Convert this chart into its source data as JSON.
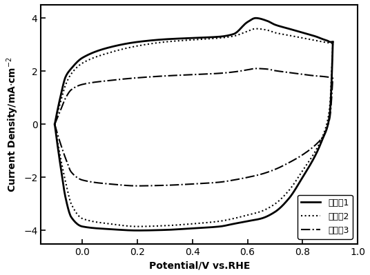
{
  "title": "",
  "xlabel": "Potential/V vs.RHE",
  "ylabel": "Current Density/mA·cm⁻²",
  "xlim": [
    -0.15,
    1.0
  ],
  "ylim": [
    -4.5,
    4.5
  ],
  "xticks": [
    0.0,
    0.2,
    0.4,
    0.6,
    0.8,
    1.0
  ],
  "yticks": [
    -4,
    -2,
    0,
    2,
    4
  ],
  "legend": [
    "实施兣1",
    "实施兣2",
    "实施兣3"
  ],
  "background_color": "white",
  "curve1_upper_pts": [
    [
      -0.1,
      0.0
    ],
    [
      -0.08,
      1.0
    ],
    [
      -0.06,
      1.8
    ],
    [
      -0.04,
      2.1
    ],
    [
      0.0,
      2.5
    ],
    [
      0.1,
      2.9
    ],
    [
      0.2,
      3.1
    ],
    [
      0.3,
      3.2
    ],
    [
      0.4,
      3.25
    ],
    [
      0.5,
      3.3
    ],
    [
      0.55,
      3.4
    ],
    [
      0.6,
      3.85
    ],
    [
      0.63,
      4.0
    ],
    [
      0.67,
      3.9
    ],
    [
      0.7,
      3.75
    ],
    [
      0.75,
      3.6
    ],
    [
      0.8,
      3.45
    ],
    [
      0.85,
      3.3
    ],
    [
      0.875,
      3.2
    ],
    [
      0.89,
      3.15
    ],
    [
      0.9,
      3.1
    ],
    [
      0.91,
      3.1
    ]
  ],
  "curve1_lower_pts": [
    [
      -0.1,
      0.0
    ],
    [
      -0.08,
      -1.5
    ],
    [
      -0.06,
      -2.8
    ],
    [
      -0.04,
      -3.5
    ],
    [
      0.0,
      -3.85
    ],
    [
      0.1,
      -3.95
    ],
    [
      0.2,
      -4.0
    ],
    [
      0.3,
      -3.98
    ],
    [
      0.4,
      -3.92
    ],
    [
      0.5,
      -3.85
    ],
    [
      0.55,
      -3.75
    ],
    [
      0.6,
      -3.65
    ],
    [
      0.65,
      -3.55
    ],
    [
      0.7,
      -3.3
    ],
    [
      0.75,
      -2.8
    ],
    [
      0.8,
      -2.0
    ],
    [
      0.85,
      -1.1
    ],
    [
      0.875,
      -0.5
    ],
    [
      0.89,
      -0.1
    ],
    [
      0.9,
      0.5
    ],
    [
      0.905,
      1.5
    ],
    [
      0.91,
      3.1
    ]
  ],
  "curve2_upper_pts": [
    [
      -0.1,
      0.0
    ],
    [
      -0.08,
      0.8
    ],
    [
      -0.06,
      1.5
    ],
    [
      -0.04,
      1.9
    ],
    [
      0.0,
      2.3
    ],
    [
      0.1,
      2.7
    ],
    [
      0.2,
      2.95
    ],
    [
      0.3,
      3.1
    ],
    [
      0.4,
      3.18
    ],
    [
      0.5,
      3.25
    ],
    [
      0.55,
      3.32
    ],
    [
      0.6,
      3.5
    ],
    [
      0.63,
      3.6
    ],
    [
      0.67,
      3.55
    ],
    [
      0.7,
      3.45
    ],
    [
      0.75,
      3.35
    ],
    [
      0.8,
      3.25
    ],
    [
      0.85,
      3.15
    ],
    [
      0.875,
      3.1
    ],
    [
      0.89,
      3.08
    ],
    [
      0.9,
      3.05
    ],
    [
      0.91,
      3.05
    ]
  ],
  "curve2_lower_pts": [
    [
      -0.1,
      0.0
    ],
    [
      -0.08,
      -1.2
    ],
    [
      -0.06,
      -2.2
    ],
    [
      -0.04,
      -3.0
    ],
    [
      0.0,
      -3.55
    ],
    [
      0.1,
      -3.75
    ],
    [
      0.2,
      -3.85
    ],
    [
      0.3,
      -3.82
    ],
    [
      0.4,
      -3.75
    ],
    [
      0.5,
      -3.65
    ],
    [
      0.55,
      -3.55
    ],
    [
      0.6,
      -3.42
    ],
    [
      0.65,
      -3.28
    ],
    [
      0.7,
      -3.0
    ],
    [
      0.75,
      -2.5
    ],
    [
      0.8,
      -1.75
    ],
    [
      0.85,
      -0.95
    ],
    [
      0.875,
      -0.4
    ],
    [
      0.89,
      0.1
    ],
    [
      0.9,
      0.8
    ],
    [
      0.905,
      1.8
    ],
    [
      0.91,
      3.05
    ]
  ],
  "curve3_upper_pts": [
    [
      -0.1,
      0.0
    ],
    [
      -0.08,
      0.5
    ],
    [
      -0.06,
      1.0
    ],
    [
      -0.04,
      1.3
    ],
    [
      0.0,
      1.5
    ],
    [
      0.1,
      1.65
    ],
    [
      0.2,
      1.75
    ],
    [
      0.3,
      1.82
    ],
    [
      0.4,
      1.87
    ],
    [
      0.5,
      1.92
    ],
    [
      0.55,
      1.97
    ],
    [
      0.6,
      2.05
    ],
    [
      0.63,
      2.1
    ],
    [
      0.67,
      2.08
    ],
    [
      0.7,
      2.02
    ],
    [
      0.75,
      1.95
    ],
    [
      0.8,
      1.88
    ],
    [
      0.85,
      1.82
    ],
    [
      0.875,
      1.8
    ],
    [
      0.89,
      1.78
    ],
    [
      0.9,
      1.77
    ],
    [
      0.91,
      1.76
    ]
  ],
  "curve3_lower_pts": [
    [
      -0.1,
      0.0
    ],
    [
      -0.08,
      -0.7
    ],
    [
      -0.06,
      -1.3
    ],
    [
      -0.04,
      -1.8
    ],
    [
      0.0,
      -2.1
    ],
    [
      0.1,
      -2.25
    ],
    [
      0.2,
      -2.32
    ],
    [
      0.3,
      -2.3
    ],
    [
      0.4,
      -2.25
    ],
    [
      0.5,
      -2.18
    ],
    [
      0.55,
      -2.1
    ],
    [
      0.6,
      -2.0
    ],
    [
      0.65,
      -1.88
    ],
    [
      0.7,
      -1.7
    ],
    [
      0.75,
      -1.45
    ],
    [
      0.8,
      -1.15
    ],
    [
      0.85,
      -0.75
    ],
    [
      0.875,
      -0.45
    ],
    [
      0.89,
      -0.1
    ],
    [
      0.9,
      0.3
    ],
    [
      0.905,
      0.9
    ],
    [
      0.91,
      1.76
    ]
  ]
}
